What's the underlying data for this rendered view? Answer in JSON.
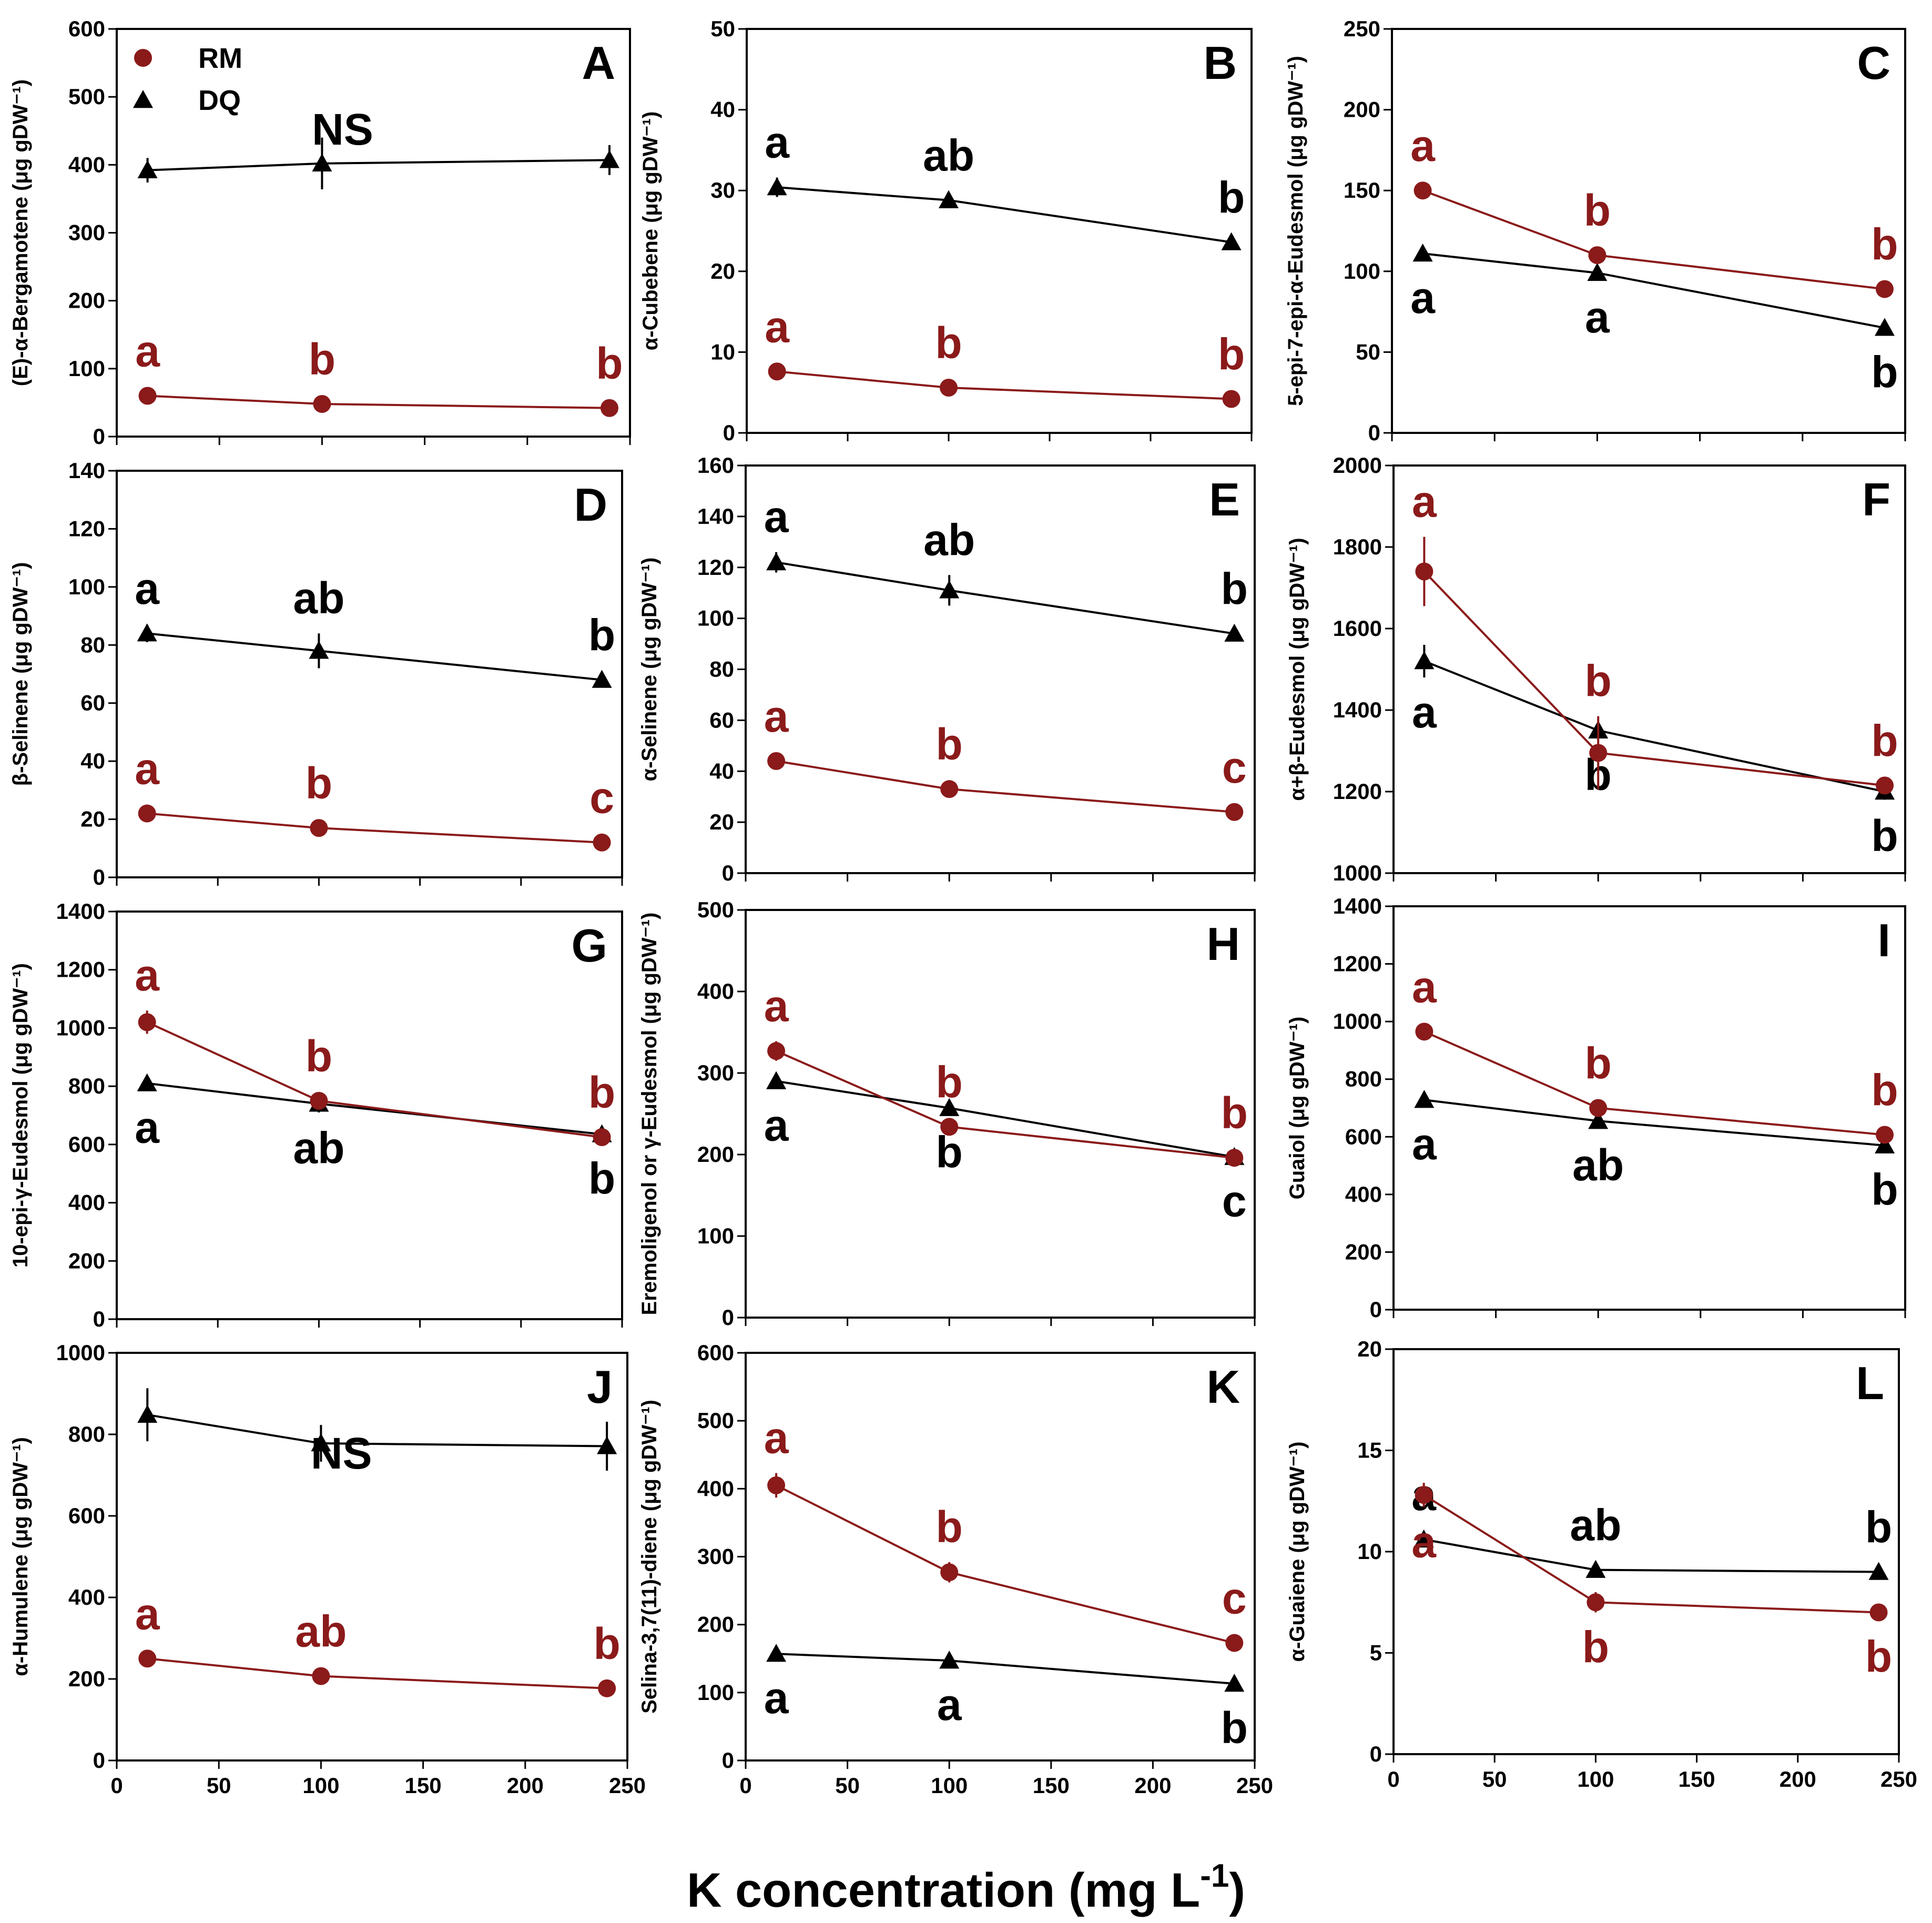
{
  "figure": {
    "xlabel": "K concentration (mg L",
    "xlabel_sup": "-1",
    "xlabel_close": ")"
  },
  "legend": {
    "rm_label": "RM",
    "dq_label": "DQ"
  },
  "colors": {
    "rm": "#8B1A1A",
    "dq": "#000000"
  },
  "chart_data": [
    {
      "panel": "A",
      "type": "line",
      "ylabel": "(E)-α-Bergamotene (μg gDW⁻¹)",
      "ylim": [
        0,
        600
      ],
      "yticks": [
        0,
        100,
        200,
        300,
        400,
        500,
        600
      ],
      "xlim": [
        0,
        250
      ],
      "xticks": [
        0,
        50,
        100,
        150,
        200,
        250
      ],
      "show_xtick_labels": false,
      "x": [
        15,
        100,
        240
      ],
      "series": [
        {
          "name": "RM",
          "values": [
            60,
            48,
            42
          ],
          "errors": [
            5,
            5,
            4
          ],
          "letters": [
            "a",
            "b",
            "b"
          ],
          "letter_pos": "above"
        },
        {
          "name": "DQ",
          "values": [
            392,
            402,
            407
          ],
          "errors": [
            18,
            38,
            22
          ],
          "letters": [],
          "letter_pos": "above"
        }
      ],
      "note": "NS"
    },
    {
      "panel": "B",
      "type": "line",
      "ylabel": "α-Cubebene (μg gDW⁻¹)",
      "ylim": [
        0,
        50
      ],
      "yticks": [
        0,
        10,
        20,
        30,
        40,
        50
      ],
      "xlim": [
        0,
        250
      ],
      "xticks": [
        0,
        50,
        100,
        150,
        200,
        250
      ],
      "show_xtick_labels": false,
      "x": [
        15,
        100,
        240
      ],
      "series": [
        {
          "name": "RM",
          "values": [
            7.6,
            5.6,
            4.2
          ],
          "errors": [
            0.5,
            0.5,
            0.4
          ],
          "letters": [
            "a",
            "b",
            "b"
          ],
          "letter_pos": "above"
        },
        {
          "name": "DQ",
          "values": [
            30.4,
            28.8,
            23.6
          ],
          "errors": [
            1.2,
            0.8,
            0.6
          ],
          "letters": [
            "a",
            "ab",
            "b"
          ],
          "letter_pos": "above"
        }
      ]
    },
    {
      "panel": "C",
      "type": "line",
      "ylabel": "5-epi-7-epi-α-Eudesmol (μg gDW⁻¹)",
      "ylim": [
        0,
        250
      ],
      "yticks": [
        0,
        50,
        100,
        150,
        200,
        250
      ],
      "xlim": [
        0,
        250
      ],
      "xticks": [
        0,
        50,
        100,
        150,
        200,
        250
      ],
      "show_xtick_labels": false,
      "x": [
        15,
        100,
        240
      ],
      "series": [
        {
          "name": "RM",
          "values": [
            150,
            110,
            89
          ],
          "errors": [
            4,
            3,
            2
          ],
          "letters": [
            "a",
            "b",
            "b"
          ],
          "letter_pos": "above"
        },
        {
          "name": "DQ",
          "values": [
            111,
            99,
            65
          ],
          "errors": [
            3,
            3,
            2
          ],
          "letters": [
            "a",
            "a",
            "b"
          ],
          "letter_pos": "below"
        }
      ]
    },
    {
      "panel": "D",
      "type": "line",
      "ylabel": "β-Selinene (μg gDW⁻¹)",
      "ylim": [
        0,
        140
      ],
      "yticks": [
        0,
        20,
        40,
        60,
        80,
        100,
        120,
        140
      ],
      "xlim": [
        0,
        250
      ],
      "xticks": [
        0,
        50,
        100,
        150,
        200,
        250
      ],
      "show_xtick_labels": false,
      "x": [
        15,
        100,
        240
      ],
      "series": [
        {
          "name": "RM",
          "values": [
            22,
            17,
            12
          ],
          "errors": [
            1.5,
            1.2,
            1
          ],
          "letters": [
            "a",
            "b",
            "c"
          ],
          "letter_pos": "above"
        },
        {
          "name": "DQ",
          "values": [
            84,
            78,
            68
          ],
          "errors": [
            3,
            6,
            2
          ],
          "letters": [
            "a",
            "ab",
            "b"
          ],
          "letter_pos": "above"
        }
      ]
    },
    {
      "panel": "E",
      "type": "line",
      "ylabel": "α-Selinene (μg gDW⁻¹)",
      "ylim": [
        0,
        160
      ],
      "yticks": [
        0,
        20,
        40,
        60,
        80,
        100,
        120,
        140,
        160
      ],
      "xlim": [
        0,
        250
      ],
      "xticks": [
        0,
        50,
        100,
        150,
        200,
        250
      ],
      "show_xtick_labels": false,
      "x": [
        15,
        100,
        240
      ],
      "series": [
        {
          "name": "RM",
          "values": [
            44,
            33,
            24
          ],
          "errors": [
            2,
            2,
            1.5
          ],
          "letters": [
            "a",
            "b",
            "c"
          ],
          "letter_pos": "above"
        },
        {
          "name": "DQ",
          "values": [
            122,
            111,
            94
          ],
          "errors": [
            4,
            6,
            3
          ],
          "letters": [
            "a",
            "ab",
            "b"
          ],
          "letter_pos": "above"
        }
      ]
    },
    {
      "panel": "F",
      "type": "line",
      "ylabel": "α+β-Eudesmol (μg gDW⁻¹)",
      "ylim": [
        1000,
        2000
      ],
      "yticks": [
        1000,
        1200,
        1400,
        1600,
        1800,
        2000
      ],
      "xlim": [
        0,
        250
      ],
      "xticks": [
        0,
        50,
        100,
        150,
        200,
        250
      ],
      "show_xtick_labels": false,
      "x": [
        15,
        100,
        240
      ],
      "series": [
        {
          "name": "RM",
          "values": [
            1740,
            1295,
            1215
          ],
          "errors": [
            85,
            90,
            15
          ],
          "letters": [
            "a",
            "b",
            "b"
          ],
          "letter_pos": "above"
        },
        {
          "name": "DQ",
          "values": [
            1520,
            1350,
            1200
          ],
          "errors": [
            40,
            20,
            20
          ],
          "letters": [
            "a",
            "b",
            "b"
          ],
          "letter_pos": "below"
        }
      ]
    },
    {
      "panel": "G",
      "type": "line",
      "ylabel": "10-epi-γ-Eudesmol (μg gDW⁻¹)",
      "ylim": [
        0,
        1400
      ],
      "yticks": [
        0,
        200,
        400,
        600,
        800,
        1000,
        1200,
        1400
      ],
      "xlim": [
        0,
        250
      ],
      "xticks": [
        0,
        50,
        100,
        150,
        200,
        250
      ],
      "show_xtick_labels": false,
      "x": [
        15,
        100,
        240
      ],
      "series": [
        {
          "name": "RM",
          "values": [
            1020,
            750,
            625
          ],
          "errors": [
            40,
            30,
            20
          ],
          "letters": [
            "a",
            "b",
            "b"
          ],
          "letter_pos": "above"
        },
        {
          "name": "DQ",
          "values": [
            810,
            740,
            635
          ],
          "errors": [
            25,
            30,
            20
          ],
          "letters": [
            "a",
            "ab",
            "b"
          ],
          "letter_pos": "below"
        }
      ]
    },
    {
      "panel": "H",
      "type": "line",
      "ylabel": "Eremoligenol or γ-Eudesmol (μg gDW⁻¹)",
      "ylim": [
        0,
        500
      ],
      "yticks": [
        0,
        100,
        200,
        300,
        400,
        500
      ],
      "xlim": [
        0,
        250
      ],
      "xticks": [
        0,
        50,
        100,
        150,
        200,
        250
      ],
      "show_xtick_labels": false,
      "x": [
        15,
        100,
        240
      ],
      "series": [
        {
          "name": "RM",
          "values": [
            327,
            234,
            196
          ],
          "errors": [
            12,
            10,
            5
          ],
          "letters": [
            "a",
            "b",
            "b"
          ],
          "letter_pos": "above"
        },
        {
          "name": "DQ",
          "values": [
            290,
            257,
            197
          ],
          "errors": [
            6,
            8,
            4
          ],
          "letters": [
            "a",
            "b",
            "c"
          ],
          "letter_pos": "below"
        }
      ]
    },
    {
      "panel": "I",
      "type": "line",
      "ylabel": "Guaiol (μg gDW⁻¹)",
      "ylim": [
        0,
        1400
      ],
      "yticks": [
        0,
        200,
        400,
        600,
        800,
        1000,
        1200,
        1400
      ],
      "xlim": [
        0,
        250
      ],
      "xticks": [
        0,
        50,
        100,
        150,
        200,
        250
      ],
      "show_xtick_labels": false,
      "x": [
        15,
        100,
        240
      ],
      "series": [
        {
          "name": "RM",
          "values": [
            965,
            700,
            607
          ],
          "errors": [
            30,
            20,
            15
          ],
          "letters": [
            "a",
            "b",
            "b"
          ],
          "letter_pos": "above"
        },
        {
          "name": "DQ",
          "values": [
            728,
            655,
            570
          ],
          "errors": [
            25,
            20,
            15
          ],
          "letters": [
            "a",
            "ab",
            "b"
          ],
          "letter_pos": "below"
        }
      ]
    },
    {
      "panel": "J",
      "type": "line",
      "ylabel": "α-Humulene (μg gDW⁻¹)",
      "ylim": [
        0,
        1000
      ],
      "yticks": [
        0,
        200,
        400,
        600,
        800,
        1000
      ],
      "xlim": [
        0,
        250
      ],
      "xticks": [
        0,
        50,
        100,
        150,
        200,
        250
      ],
      "show_xtick_labels": true,
      "x": [
        15,
        100,
        240
      ],
      "series": [
        {
          "name": "RM",
          "values": [
            250,
            207,
            177
          ],
          "errors": [
            10,
            8,
            6
          ],
          "letters": [
            "a",
            "ab",
            "b"
          ],
          "letter_pos": "above"
        },
        {
          "name": "DQ",
          "values": [
            848,
            778,
            771
          ],
          "errors": [
            65,
            45,
            60
          ],
          "letters": [],
          "letter_pos": "above"
        }
      ],
      "note": "NS"
    },
    {
      "panel": "K",
      "type": "line",
      "ylabel": "Selina-3,7(11)-diene (μg gDW⁻¹)",
      "ylim": [
        0,
        600
      ],
      "yticks": [
        0,
        100,
        200,
        300,
        400,
        500,
        600
      ],
      "xlim": [
        0,
        250
      ],
      "xticks": [
        0,
        50,
        100,
        150,
        200,
        250
      ],
      "show_xtick_labels": true,
      "x": [
        15,
        100,
        240
      ],
      "series": [
        {
          "name": "RM",
          "values": [
            405,
            277,
            173
          ],
          "errors": [
            18,
            15,
            10
          ],
          "letters": [
            "a",
            "b",
            "c"
          ],
          "letter_pos": "above"
        },
        {
          "name": "DQ",
          "values": [
            157,
            147,
            113
          ],
          "errors": [
            6,
            8,
            5
          ],
          "letters": [
            "a",
            "a",
            "b"
          ],
          "letter_pos": "below"
        }
      ]
    },
    {
      "panel": "L",
      "type": "line",
      "ylabel": "α-Guaiene (μg gDW⁻¹)",
      "ylim": [
        0,
        20
      ],
      "yticks": [
        0,
        5,
        10,
        15,
        20
      ],
      "xlim": [
        0,
        250
      ],
      "xticks": [
        0,
        50,
        100,
        150,
        200,
        250
      ],
      "show_xtick_labels": true,
      "x": [
        15,
        100,
        240
      ],
      "series": [
        {
          "name": "RM",
          "values": [
            12.8,
            7.5,
            7.0
          ],
          "errors": [
            0.6,
            0.5,
            0.3
          ],
          "letters": [
            "a",
            "b",
            "b"
          ],
          "letter_pos": "below"
        },
        {
          "name": "DQ",
          "values": [
            10.6,
            9.1,
            9.0
          ],
          "errors": [
            0.3,
            0.3,
            0.2
          ],
          "letters": [
            "a",
            "ab",
            "b"
          ],
          "letter_pos": "above"
        }
      ]
    }
  ]
}
